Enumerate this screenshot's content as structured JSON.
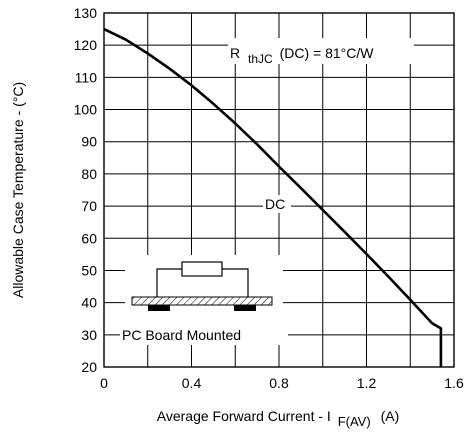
{
  "chart_data": {
    "type": "line",
    "title": "",
    "xlabel": "Average Forward Current - I",
    "xlabel_sub": "F(AV)",
    "xlabel_unit": "(A)",
    "ylabel": "Allowable Case Temperature - (°C)",
    "xlim": [
      0,
      1.6
    ],
    "ylim": [
      20,
      130
    ],
    "x_ticks": [
      0,
      0.4,
      0.8,
      1.2,
      1.6
    ],
    "x_tick_labels": [
      "0",
      "0.4",
      "0.8",
      "1.2",
      "1.6"
    ],
    "y_ticks": [
      20,
      30,
      40,
      50,
      60,
      70,
      80,
      90,
      100,
      110,
      120,
      130
    ],
    "y_tick_labels": [
      "20",
      "30",
      "40",
      "50",
      "60",
      "70",
      "80",
      "90",
      "100",
      "110",
      "120",
      "130"
    ],
    "grid": true,
    "series": [
      {
        "name": "DC",
        "x": [
          0,
          0.1,
          0.2,
          0.3,
          0.4,
          0.5,
          0.6,
          0.7,
          0.8,
          0.9,
          1.0,
          1.1,
          1.2,
          1.3,
          1.4,
          1.5,
          1.54,
          1.54
        ],
        "y": [
          125,
          121.7,
          117.4,
          112.7,
          107.5,
          101.8,
          95.7,
          89.2,
          82.3,
          75.6,
          68.8,
          62.0,
          55.1,
          48.1,
          40.9,
          33.6,
          32,
          20
        ]
      }
    ],
    "annotations": [
      {
        "id": "rth",
        "text_main": "R",
        "text_sub": "thJC",
        "text_rest": "(DC) = 81°C/W"
      },
      {
        "id": "dc",
        "text": "DC"
      },
      {
        "id": "pcb",
        "text": "PC Board Mounted"
      }
    ]
  }
}
